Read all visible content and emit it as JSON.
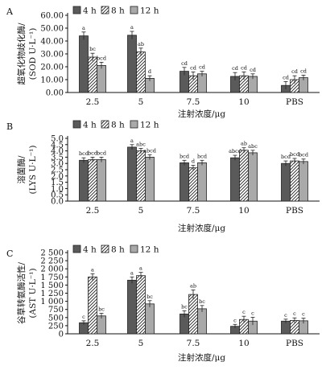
{
  "chart_data": [
    {
      "type": "bar",
      "panel": "A",
      "ylabel_line1": "超氧化物歧化酶/",
      "ylabel_line2": "(SOD U·L⁻¹)",
      "xlabel": "注射浓度/μg",
      "ylim": [
        0,
        60
      ],
      "yticks": [
        "0.00",
        "10.00",
        "20.00",
        "30.00",
        "40.00",
        "50.00",
        "60.00"
      ],
      "categories": [
        "2.5",
        "5",
        "7.5",
        "10",
        "PBS"
      ],
      "series": [
        {
          "name": "4 h",
          "values": [
            44,
            44.5,
            16.5,
            12.5,
            5.5
          ],
          "errors": [
            3,
            3,
            3,
            3,
            3
          ],
          "labels": [
            "a",
            "a",
            "cd",
            "cd",
            "cd"
          ]
        },
        {
          "name": "8 h",
          "values": [
            27.5,
            31.5,
            13,
            13,
            10
          ],
          "errors": [
            3,
            3,
            3,
            3,
            3
          ],
          "labels": [
            "bc",
            "ab",
            "cd",
            "cd",
            "cd"
          ]
        },
        {
          "name": "12 h",
          "values": [
            21,
            11,
            14.5,
            12.5,
            11.5
          ],
          "errors": [
            2.5,
            2,
            2,
            2,
            2
          ],
          "labels": [
            "bcd",
            "d",
            "cd",
            "cd",
            "cd"
          ]
        }
      ]
    },
    {
      "type": "bar",
      "panel": "B",
      "ylabel_line1": "溶菌酶/",
      "ylabel_line2": "(LYS U·L⁻¹)",
      "xlabel": "注射浓度/μg",
      "ylim": [
        0,
        5
      ],
      "yticks": [
        "0.0",
        "0.5",
        "1.0",
        "1.5",
        "2.0",
        "2.5",
        "3.0",
        "3.5",
        "4.0",
        "4.5",
        "5.0"
      ],
      "categories": [
        "2.5",
        "5",
        "7.5",
        "10",
        "PBS"
      ],
      "series": [
        {
          "name": "4 h",
          "values": [
            3.25,
            4.3,
            3.05,
            3.45,
            3.0
          ],
          "errors": [
            0.2,
            0.2,
            0.2,
            0.2,
            0.2
          ],
          "labels": [
            "bcd",
            "a",
            "bcd",
            "abcd",
            "bcd"
          ]
        },
        {
          "name": "8 h",
          "values": [
            3.3,
            4.0,
            2.65,
            4.05,
            3.2
          ],
          "errors": [
            0.2,
            0.2,
            0.2,
            0.2,
            0.2
          ],
          "labels": [
            "bcd",
            "abc",
            "d",
            "ab",
            "bcd"
          ]
        },
        {
          "name": "12 h",
          "values": [
            3.3,
            3.5,
            3.05,
            3.85,
            3.15
          ],
          "errors": [
            0.2,
            0.2,
            0.2,
            0.2,
            0.2
          ],
          "labels": [
            "bcd",
            "abcd",
            "bcd",
            "abc",
            "bcd"
          ]
        }
      ]
    },
    {
      "type": "bar",
      "panel": "C",
      "ylabel_line1": "谷草转氨酶活性/",
      "ylabel_line2": "(AST U·L⁻¹)",
      "xlabel": "注射浓度/μg",
      "ylim": [
        0,
        2500
      ],
      "yticks": [
        "0",
        "250",
        "500",
        "750",
        "1 000",
        "1 250",
        "1 500",
        "1 750",
        "2 000",
        "2 250",
        "2 500"
      ],
      "categories": [
        "2.5",
        "5",
        "7.5",
        "10",
        "PBS"
      ],
      "series": [
        {
          "name": "4 h",
          "values": [
            340,
            1650,
            610,
            230,
            390
          ],
          "errors": [
            60,
            100,
            100,
            60,
            60
          ],
          "labels": [
            "c",
            "a",
            "bc",
            "c",
            "c"
          ]
        },
        {
          "name": "8 h",
          "values": [
            1750,
            1790,
            1210,
            440,
            410
          ],
          "errors": [
            100,
            100,
            140,
            100,
            80
          ],
          "labels": [
            "a",
            "a",
            "ab",
            "c",
            "c"
          ]
        },
        {
          "name": "12 h",
          "values": [
            550,
            920,
            770,
            390,
            400
          ],
          "errors": [
            80,
            100,
            100,
            120,
            80
          ],
          "labels": [
            "bc",
            "bc",
            "bc",
            "c",
            "c"
          ]
        }
      ]
    }
  ],
  "colors": {
    "h4": "#5a5a5a",
    "h8": "#ffffff",
    "h12": "#a9a9a9",
    "axis": "#111111"
  }
}
